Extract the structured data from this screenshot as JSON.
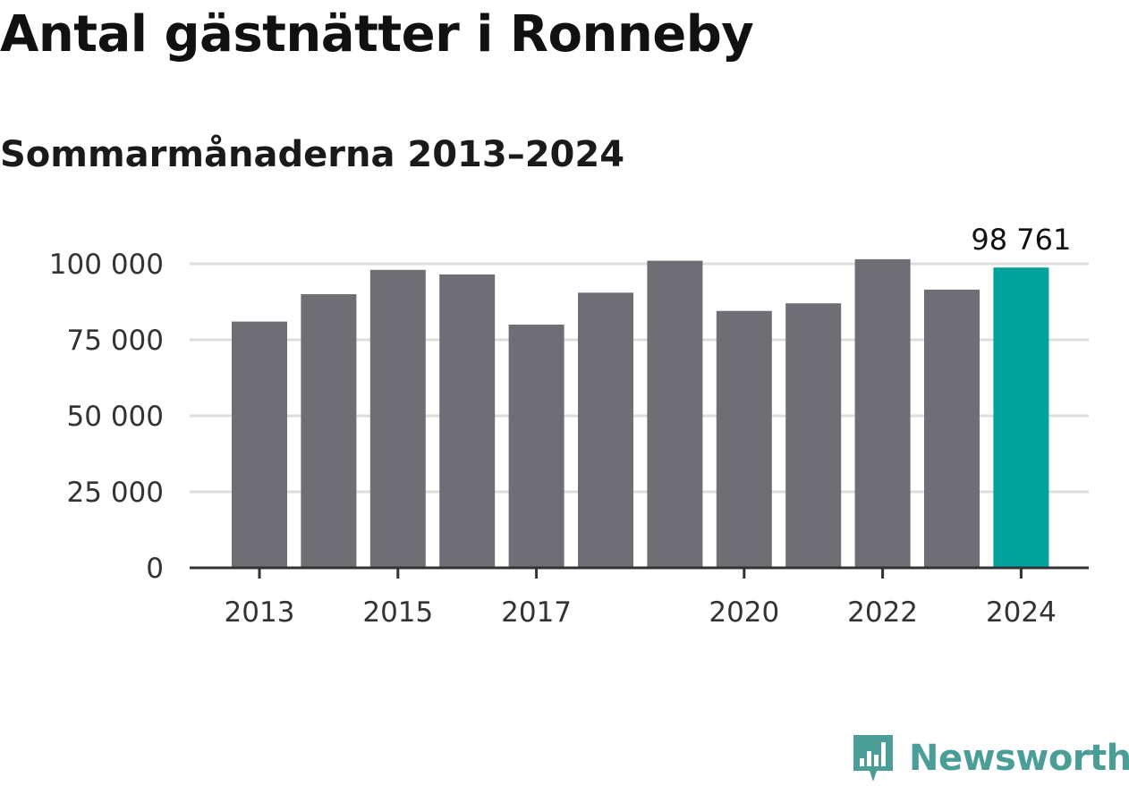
{
  "title": "Antal gästnätter i Ronneby",
  "subtitle": "Sommarmånaderna 2013–2024",
  "brand": {
    "name": "Newsworthy",
    "color": "#4b9d98",
    "icon": "newsworthy-chart-logo-icon"
  },
  "colors": {
    "bar": "#6f6e74",
    "highlight": "#00a39a",
    "grid": "#dddddd",
    "axis": "#333333"
  },
  "chart_data": {
    "type": "bar",
    "title": "Antal gästnätter i Ronneby",
    "subtitle": "Sommarmånaderna 2013–2024",
    "categories": [
      "2013",
      "2014",
      "2015",
      "2016",
      "2017",
      "2018",
      "2019",
      "2020",
      "2021",
      "2022",
      "2023",
      "2024"
    ],
    "values": [
      81000,
      90000,
      98000,
      96500,
      80000,
      90500,
      101000,
      84500,
      87000,
      101500,
      91500,
      98761
    ],
    "highlight_index": 11,
    "x_tick_labels": [
      "2013",
      "",
      "2015",
      "",
      "2017",
      "",
      "",
      "2020",
      "",
      "2022",
      "",
      "2024"
    ],
    "y_ticks": [
      0,
      25000,
      50000,
      75000,
      100000
    ],
    "y_tick_labels": [
      "0",
      "25 000",
      "50 000",
      "75 000",
      "100 000"
    ],
    "ylim": [
      0,
      100000
    ],
    "data_labels": [
      {
        "index": 11,
        "text": "98 761"
      }
    ],
    "grid": true
  }
}
